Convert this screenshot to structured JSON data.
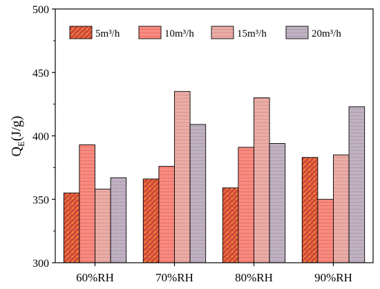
{
  "chart_data": {
    "type": "bar",
    "ylabel_main": "Q",
    "ylabel_sub": "E",
    "ylabel_rest": "(J/g)",
    "xlabel": "",
    "ylim": [
      300,
      500
    ],
    "yticks": [
      300,
      350,
      400,
      450,
      500
    ],
    "categories": [
      "60%RH",
      "70%RH",
      "80%RH",
      "90%RH"
    ],
    "series": [
      {
        "name": "5m³/h",
        "values": [
          355,
          366,
          359,
          383
        ]
      },
      {
        "name": "10m³/h",
        "values": [
          393,
          376,
          391,
          350
        ]
      },
      {
        "name": "15m³/h",
        "values": [
          358,
          435,
          430,
          385
        ]
      },
      {
        "name": "20m³/h",
        "values": [
          367,
          409,
          394,
          423
        ]
      }
    ],
    "legend_position": "top",
    "grid": false
  },
  "colors": {
    "series": [
      "#d2453a",
      "#f78b81",
      "#e9aca6",
      "#c0b1c2"
    ],
    "stroke": "#000000"
  },
  "patterns": [
    "diagonal-hatch",
    "horizontal-lines",
    "horizontal-lines",
    "horizontal-lines"
  ]
}
